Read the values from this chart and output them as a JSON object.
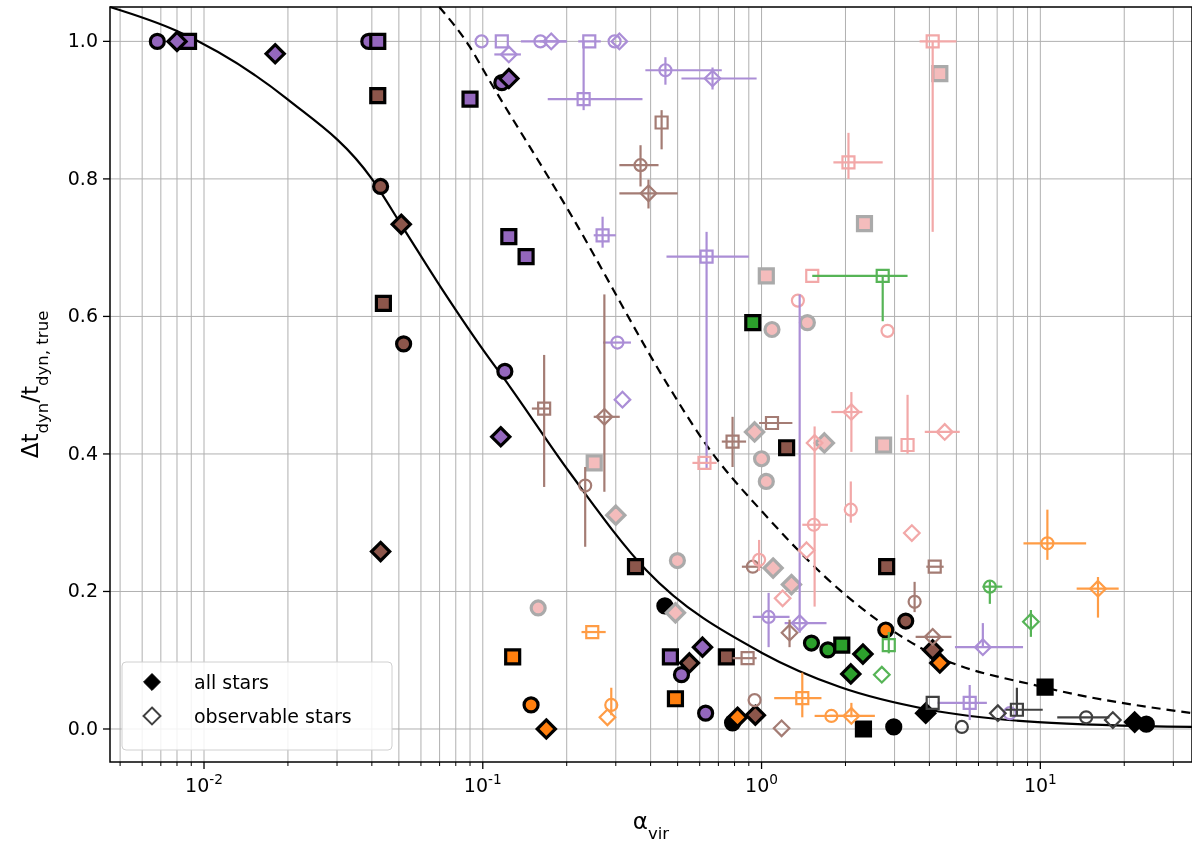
{
  "chart_data": {
    "type": "scatter",
    "xlabel": "α$_{vir}$",
    "ylabel": "Δt$_{dyn}$/t$_{dyn, true}$",
    "log": "x",
    "grid": true,
    "legend": "bottom left",
    "xlim": [
      0.0046,
      35
    ],
    "ylim": [
      -0.048,
      1.05
    ],
    "xticks": [
      {
        "value": 0.005,
        "label": null
      },
      {
        "value": 0.006,
        "label": null
      },
      {
        "value": 0.007,
        "label": null
      },
      {
        "value": 0.008,
        "label": null
      },
      {
        "value": 0.009,
        "label": null
      },
      {
        "value": 0.01,
        "label": "10$^{-2}$"
      },
      {
        "value": 0.02,
        "label": null
      },
      {
        "value": 0.03,
        "label": null
      },
      {
        "value": 0.04,
        "label": null
      },
      {
        "value": 0.05,
        "label": null
      },
      {
        "value": 0.06,
        "label": null
      },
      {
        "value": 0.07,
        "label": null
      },
      {
        "value": 0.08,
        "label": null
      },
      {
        "value": 0.09,
        "label": null
      },
      {
        "value": 0.1,
        "label": "10$^{-1}$"
      },
      {
        "value": 0.2,
        "label": null
      },
      {
        "value": 0.3,
        "label": null
      },
      {
        "value": 0.4,
        "label": null
      },
      {
        "value": 0.5,
        "label": null
      },
      {
        "value": 0.6,
        "label": null
      },
      {
        "value": 0.7,
        "label": null
      },
      {
        "value": 0.8,
        "label": null
      },
      {
        "value": 0.9,
        "label": null
      },
      {
        "value": 1,
        "label": "10$^{0}$"
      },
      {
        "value": 2,
        "label": null
      },
      {
        "value": 3,
        "label": null
      },
      {
        "value": 4,
        "label": null
      },
      {
        "value": 5,
        "label": null
      },
      {
        "value": 6,
        "label": null
      },
      {
        "value": 7,
        "label": null
      },
      {
        "value": 8,
        "label": null
      },
      {
        "value": 9,
        "label": null
      },
      {
        "value": 10,
        "label": "10$^{1}$"
      },
      {
        "value": 20,
        "label": null
      },
      {
        "value": 30,
        "label": null
      }
    ],
    "yticks": [
      {
        "value": 0,
        "label": "0.0"
      },
      {
        "value": 0.2,
        "label": "0.2"
      },
      {
        "value": 0.4,
        "label": "0.4"
      },
      {
        "value": 0.6,
        "label": "0.6"
      },
      {
        "value": 0.8,
        "label": "0.8"
      },
      {
        "value": 1,
        "label": "1.0"
      }
    ],
    "series": [
      {
        "type": "line",
        "color": "#000000",
        "line_style": "solid",
        "marker": "none",
        "x": [
          0.0046,
          0.008,
          0.0199,
          0.04,
          0.0514,
          0.0716,
          0.105,
          0.12,
          0.205,
          0.386,
          1.0,
          1.91,
          4.0,
          9.8,
          35
        ],
        "values": [
          1.05,
          1.015,
          0.916,
          0.8,
          0.731,
          0.639,
          0.54,
          0.508,
          0.373,
          0.231,
          0.111,
          0.061,
          0.028,
          0.01,
          0.003
        ]
      },
      {
        "type": "line",
        "color": "#000000",
        "line_style": "dashed",
        "marker": "none",
        "x": [
          0.0698,
          0.0895,
          0.105,
          0.205,
          0.468,
          0.614,
          1.07,
          1.91,
          4.0,
          10.2,
          35
        ],
        "values": [
          1.05,
          0.993,
          0.945,
          0.751,
          0.496,
          0.421,
          0.304,
          0.202,
          0.111,
          0.061,
          0.023
        ]
      },
      {
        "marker": "circle",
        "color": "#000000",
        "x": [
          0.0068,
          0.039,
          0.043,
          0.052,
          0.12,
          0.117,
          0.45,
          0.516,
          0.149,
          0.63,
          0.787,
          1.51,
          1.73,
          3.29,
          2.79,
          2.98,
          24
        ],
        "values": [
          1.0,
          1.0,
          0.789,
          0.56,
          0.52,
          0.94,
          0.179,
          0.079,
          0.035,
          0.023,
          0.009,
          0.125,
          0.115,
          0.157,
          0.144,
          0.003,
          0.007
        ],
        "colors": [
          "#9467bd",
          "#9467bd",
          "#8c564b",
          "#8c564b",
          "#9467bd",
          "#9467bd",
          "#000000",
          "#9467bd",
          "#ff7f0e",
          "#9467bd",
          "#000000",
          "#2ca02c",
          "#2ca02c",
          "#8c564b",
          "#ff7f0e",
          "#000000",
          "#000000"
        ]
      },
      {
        "marker": "square",
        "color": "#000000",
        "x": [
          0.0088,
          0.042,
          0.042,
          0.09,
          0.044,
          0.124,
          0.143,
          0.93,
          0.353,
          0.128,
          0.471,
          0.748,
          0.491,
          1.23,
          1.94,
          2.81,
          2.32,
          10.4
        ],
        "values": [
          1.0,
          1.0,
          0.921,
          0.916,
          0.619,
          0.716,
          0.687,
          0.591,
          0.236,
          0.105,
          0.105,
          0.105,
          0.044,
          0.409,
          0.122,
          0.236,
          0.0,
          0.061
        ],
        "colors": [
          "#9467bd",
          "#9467bd",
          "#8c564b",
          "#9467bd",
          "#8c564b",
          "#9467bd",
          "#9467bd",
          "#2ca02c",
          "#8c564b",
          "#ff7f0e",
          "#9467bd",
          "#8c564b",
          "#ff7f0e",
          "#8c564b",
          "#2ca02c",
          "#8c564b",
          "#000000",
          "#000000"
        ]
      },
      {
        "name": "all stars",
        "marker": "diamond",
        "color": "#000000",
        "x": [
          0.008,
          0.018,
          0.051,
          0.043,
          0.116,
          0.124,
          0.551,
          0.614,
          0.169,
          0.82,
          0.95,
          2.31,
          2.09,
          4.11,
          4.36,
          3.88,
          21.8
        ],
        "values": [
          1.0,
          0.982,
          0.734,
          0.258,
          0.425,
          0.946,
          0.096,
          0.119,
          0.0,
          0.017,
          0.02,
          0.109,
          0.08,
          0.115,
          0.096,
          0.023,
          0.01
        ],
        "colors": [
          "#9467bd",
          "#9467bd",
          "#8c564b",
          "#8c564b",
          "#9467bd",
          "#9467bd",
          "#8c564b",
          "#9467bd",
          "#ff7f0e",
          "#ff7f0e",
          "#8c564b",
          "#2ca02c",
          "#2ca02c",
          "#8c564b",
          "#ff7f0e",
          "#000000",
          "#000000"
        ]
      },
      {
        "marker": "circle",
        "color": "#aaaaaa",
        "x": [
          1.09,
          1.46,
          0.499,
          0.158,
          1.0,
          1.04
        ],
        "values": [
          0.581,
          0.591,
          0.245,
          0.176,
          0.393,
          0.36
        ],
        "colors": [
          "#f4bcbc",
          "#f4bcbc",
          "#f4bcbc",
          "#f4bcbc",
          "#f4bcbc",
          "#f4bcbc"
        ]
      },
      {
        "marker": "square",
        "color": "#aaaaaa",
        "x": [
          1.04,
          4.36,
          2.34,
          0.251,
          2.74
        ],
        "values": [
          0.659,
          0.953,
          0.735,
          0.387,
          0.413
        ],
        "colors": [
          "#f4bcbc",
          "#f4bcbc",
          "#f4bcbc",
          "#f4bcbc",
          "#f4bcbc"
        ]
      },
      {
        "marker": "diamond",
        "color": "#aaaaaa",
        "x": [
          0.3,
          0.491,
          0.944,
          1.68,
          1.1,
          1.28
        ],
        "values": [
          0.311,
          0.169,
          0.432,
          0.416,
          0.234,
          0.21
        ],
        "colors": [
          "#f4bcbc",
          "#f4bcbc",
          "#f4bcbc",
          "#f4bcbc",
          "#f4bcbc",
          "#f4bcbc"
        ]
      },
      {
        "marker": "circle",
        "color": "#ab8ed6",
        "x": [
          0.099,
          0.161,
          0.297,
          0.452,
          0.304,
          1.06,
          7.77
        ],
        "values": [
          1.0,
          1.0,
          1.0,
          0.958,
          0.562,
          0.163,
          0.023
        ],
        "errors": [
          null,
          null,
          null,
          [
            0.937,
            0.977
          ],
          null,
          [
            0.119,
            0.198
          ],
          null
        ],
        "xerrors": [
          null,
          [
            0.137,
            0.2
          ],
          null,
          [
            0.383,
            0.72
          ],
          [
            0.27,
            0.34
          ],
          [
            0.93,
            1.26
          ],
          null
        ]
      },
      {
        "marker": "circle",
        "color": "#a47c74",
        "x": [
          0.368,
          0.233,
          0.944,
          0.93,
          3.54
        ],
        "values": [
          0.82,
          0.354,
          0.042,
          0.236,
          0.185
        ],
        "errors": [
          [
            0.789,
            0.849
          ],
          [
            0.265,
            0.381
          ],
          null,
          null,
          [
            0.17,
            0.214
          ]
        ],
        "xerrors": [
          [
            0.309,
            0.427
          ],
          null,
          null,
          [
            0.85,
            1.0
          ],
          null
        ]
      },
      {
        "marker": "circle",
        "color": "#f2a8a8",
        "x": [
          1.35,
          2.83,
          1.54,
          0.98,
          2.09
        ],
        "values": [
          0.623,
          0.579,
          0.297,
          0.246,
          0.319
        ],
        "errors": [
          null,
          null,
          null,
          [
            0.23,
            0.275
          ],
          [
            0.3,
            0.36
          ]
        ],
        "xerrors": [
          null,
          null,
          [
            1.4,
            1.73
          ],
          null,
          null
        ]
      },
      {
        "marker": "circle",
        "color": "#ff9c45",
        "x": [
          0.289,
          1.78,
          10.6
        ],
        "values": [
          0.035,
          0.019,
          0.27
        ],
        "errors": [
          [
            0.02,
            0.06
          ],
          null,
          [
            0.246,
            0.319
          ]
        ],
        "xerrors": [
          null,
          [
            1.55,
            1.99
          ],
          [
            8.7,
            14.6
          ]
        ]
      },
      {
        "marker": "circle",
        "color": "#56b456",
        "x": [
          6.59
        ],
        "values": [
          0.207
        ],
        "errors": [
          [
            0.182,
            0.215
          ]
        ],
        "xerrors": [
          [
            6.2,
            7.3
          ]
        ]
      },
      {
        "marker": "circle",
        "color": "#404040",
        "x": [
          5.23,
          14.6
        ],
        "values": [
          0.003,
          0.017
        ],
        "xerrors": [
          null,
          [
            11.5,
            17.7
          ]
        ]
      },
      {
        "marker": "square",
        "color": "#ab8ed6",
        "x": [
          0.117,
          0.241,
          0.23,
          0.269,
          0.635,
          5.58
        ],
        "values": [
          1.0,
          1.0,
          0.916,
          0.718,
          0.687,
          0.038
        ],
        "errors": [
          null,
          null,
          [
            0.9,
            1.0
          ],
          [
            0.7,
            0.745
          ],
          [
            0.377,
            0.723
          ],
          [
            0.013,
            0.064
          ]
        ],
        "xerrors": [
          null,
          [
            0.22,
            0.265
          ],
          [
            0.171,
            0.374
          ],
          [
            0.25,
            0.3
          ],
          [
            0.456,
            0.9
          ],
          [
            4.28,
            6.43
          ]
        ]
      },
      {
        "marker": "square",
        "color": "#a47c74",
        "x": [
          0.438,
          0.166,
          0.891,
          0.787,
          1.09,
          4.18
        ],
        "values": [
          0.882,
          0.466,
          0.103,
          0.418,
          0.445,
          0.236
        ],
        "errors": [
          [
            0.843,
            0.9
          ],
          [
            0.352,
            0.544
          ],
          null,
          [
            0.381,
            0.454
          ],
          null,
          null
        ],
        "xerrors": [
          null,
          [
            0.15,
            0.174
          ],
          [
            0.787,
            0.96
          ],
          [
            0.72,
            0.88
          ],
          [
            0.98,
            1.29
          ],
          [
            3.9,
            4.5
          ]
        ]
      },
      {
        "marker": "square",
        "color": "#f2a8a8",
        "x": [
          2.05,
          4.11,
          1.52,
          0.624,
          3.34
        ],
        "values": [
          0.824,
          1.0,
          0.659,
          0.387,
          0.413
        ],
        "errors": [
          [
            0.8,
            0.867
          ],
          [
            0.723,
            1.0
          ],
          null,
          null,
          [
            0.4,
            0.486
          ]
        ],
        "xerrors": [
          [
            1.81,
            2.72
          ],
          [
            3.69,
            5.0
          ],
          null,
          [
            0.565,
            0.69
          ],
          null
        ]
      },
      {
        "marker": "square",
        "color": "#56b456",
        "x": [
          2.72,
          2.86
        ],
        "values": [
          0.659,
          0.122
        ],
        "errors": [
          [
            0.593,
            0.66
          ],
          [
            0.11,
            0.141
          ]
        ],
        "xerrors": [
          [
            1.52,
            3.34
          ],
          null
        ]
      },
      {
        "marker": "square",
        "color": "#ff9c45",
        "x": [
          0.247,
          1.4
        ],
        "values": [
          0.141,
          0.045
        ],
        "errors": [
          null,
          [
            0.017,
            0.082
          ]
        ],
        "xerrors": [
          [
            0.226,
            0.276
          ],
          [
            1.11,
            1.64
          ]
        ]
      },
      {
        "marker": "square",
        "color": "#404040",
        "x": [
          4.11,
          8.24
        ],
        "values": [
          0.038,
          0.028
        ],
        "errors": [
          null,
          [
            0.02,
            0.06
          ]
        ],
        "xerrors": [
          null,
          [
            7.5,
            10.2
          ]
        ]
      },
      {
        "marker": "diamond",
        "color": "#ab8ed6",
        "x": [
          0.124,
          0.176,
          0.309,
          0.667,
          0.317,
          1.37,
          6.22
        ],
        "values": [
          0.981,
          1.0,
          1.0,
          0.946,
          0.479,
          0.154,
          0.119
        ],
        "errors": [
          null,
          null,
          null,
          [
            0.93,
            0.962
          ],
          null,
          [
            0.14,
            0.632
          ],
          [
            0.119,
            0.154
          ]
        ],
        "xerrors": [
          [
            0.11,
            0.137
          ],
          [
            0.16,
            0.2
          ],
          null,
          [
            0.516,
            0.96
          ],
          null,
          [
            1.21,
            1.71
          ],
          [
            4.94,
            8.67
          ]
        ]
      },
      {
        "marker": "diamond",
        "color": "#a47c74",
        "x": [
          0.393,
          0.273,
          1.18,
          1.26,
          4.11
        ],
        "values": [
          0.779,
          0.454,
          0.001,
          0.14,
          0.134
        ],
        "errors": [
          [
            0.757,
            0.799
          ],
          [
            0.345,
            0.632
          ],
          null,
          [
            0.119,
            0.159
          ],
          null
        ],
        "xerrors": [
          [
            0.309,
            0.5
          ],
          [
            0.25,
            0.31
          ],
          null,
          null,
          [
            3.57,
            4.8
          ]
        ]
      },
      {
        "marker": "diamond",
        "color": "#f2a8a8",
        "x": [
          1.55,
          1.45,
          1.19,
          2.1,
          4.54,
          3.46
        ],
        "values": [
          0.416,
          0.26,
          0.19,
          0.461,
          0.432,
          0.285
        ],
        "errors": [
          [
            0.178,
            0.44
          ],
          null,
          null,
          [
            0.403,
            0.49
          ],
          null,
          null
        ],
        "xerrors": [
          null,
          null,
          null,
          [
            1.78,
            2.3
          ],
          [
            3.85,
            5.14
          ],
          null
        ]
      },
      {
        "marker": "diamond",
        "color": "#ff9c45",
        "x": [
          0.28,
          16.1,
          2.1
        ],
        "values": [
          0.017,
          0.204,
          0.019
        ],
        "errors": [
          null,
          [
            0.162,
            0.221
          ],
          [
            0.017,
            0.038
          ]
        ],
        "xerrors": [
          null,
          [
            13.5,
            19.1
          ],
          [
            1.75,
            2.55
          ]
        ]
      },
      {
        "marker": "diamond",
        "color": "#56b456",
        "x": [
          9.25,
          2.7
        ],
        "values": [
          0.156,
          0.079
        ],
        "errors": [
          [
            0.134,
            0.173
          ],
          null
        ]
      },
      {
        "name": "observable stars",
        "marker": "diamond",
        "color": "#404040",
        "x": [
          7.04,
          18.2
        ],
        "values": [
          0.023,
          0.013
        ]
      }
    ]
  }
}
